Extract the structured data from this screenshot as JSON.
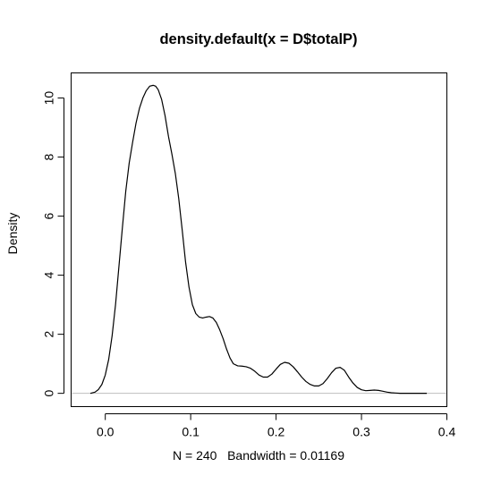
{
  "chart_data": {
    "type": "line",
    "title": "density.default(x = D$totalP)",
    "xlabel": "N = 240   Bandwidth = 0.01169",
    "ylabel": "Density",
    "xlim": [
      -0.04,
      0.4
    ],
    "ylim": [
      -0.45,
      10.85
    ],
    "x_ticks": [
      0.0,
      0.1,
      0.2,
      0.3,
      0.4
    ],
    "x_tick_labels": [
      "0.0",
      "0.1",
      "0.2",
      "0.3",
      "0.4"
    ],
    "y_ticks": [
      0,
      2,
      4,
      6,
      8,
      10
    ],
    "y_tick_labels": [
      "0",
      "2",
      "4",
      "6",
      "8",
      "10"
    ],
    "grid": false,
    "legend": "none",
    "baseline": {
      "y": 0,
      "color": "#bebebe"
    },
    "line_color": "#000000",
    "series": [
      {
        "x": [
          -0.0175,
          -0.012,
          -0.008,
          -0.004,
          0.0,
          0.004,
          0.008,
          0.012,
          0.016,
          0.02,
          0.024,
          0.028,
          0.032,
          0.036,
          0.04,
          0.044,
          0.048,
          0.052,
          0.056,
          0.059,
          0.062,
          0.066,
          0.07,
          0.074,
          0.078,
          0.082,
          0.086,
          0.09,
          0.094,
          0.098,
          0.102,
          0.106,
          0.11,
          0.114,
          0.118,
          0.122,
          0.126,
          0.13,
          0.134,
          0.138,
          0.142,
          0.146,
          0.15,
          0.155,
          0.16,
          0.165,
          0.17,
          0.175,
          0.18,
          0.185,
          0.19,
          0.195,
          0.2,
          0.205,
          0.21,
          0.215,
          0.22,
          0.225,
          0.23,
          0.235,
          0.24,
          0.245,
          0.25,
          0.255,
          0.26,
          0.265,
          0.27,
          0.275,
          0.28,
          0.285,
          0.29,
          0.295,
          0.3,
          0.305,
          0.31,
          0.315,
          0.32,
          0.325,
          0.33,
          0.335,
          0.34,
          0.345,
          0.35,
          0.355,
          0.36,
          0.365,
          0.37,
          0.3765
        ],
        "y": [
          0.0,
          0.04,
          0.13,
          0.3,
          0.62,
          1.15,
          1.95,
          3.0,
          4.3,
          5.6,
          6.85,
          7.8,
          8.5,
          9.15,
          9.65,
          10.0,
          10.25,
          10.4,
          10.43,
          10.4,
          10.28,
          9.95,
          9.4,
          8.7,
          8.1,
          7.45,
          6.6,
          5.55,
          4.45,
          3.6,
          3.0,
          2.7,
          2.58,
          2.55,
          2.58,
          2.6,
          2.55,
          2.4,
          2.15,
          1.85,
          1.5,
          1.2,
          1.0,
          0.93,
          0.92,
          0.9,
          0.85,
          0.75,
          0.62,
          0.55,
          0.55,
          0.65,
          0.82,
          0.98,
          1.05,
          1.02,
          0.9,
          0.73,
          0.55,
          0.4,
          0.3,
          0.25,
          0.25,
          0.33,
          0.5,
          0.7,
          0.85,
          0.88,
          0.78,
          0.55,
          0.35,
          0.2,
          0.12,
          0.09,
          0.1,
          0.11,
          0.1,
          0.07,
          0.04,
          0.02,
          0.01,
          0.0,
          0.0,
          0.0,
          0.0,
          0.0,
          0.0,
          0.0
        ]
      }
    ]
  }
}
